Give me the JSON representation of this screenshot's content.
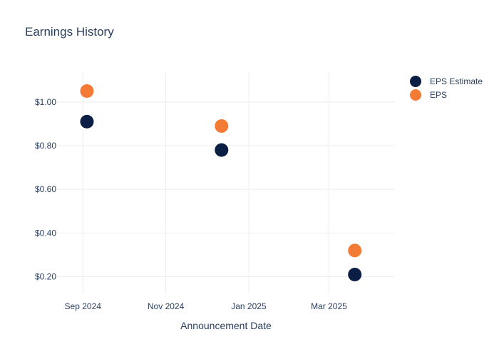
{
  "chart_data": {
    "type": "scatter",
    "title": "Earnings History",
    "xlabel": "Announcement Date",
    "ylabel": "",
    "x_ticks": [
      {
        "date": "2024-09-01",
        "label": "Sep 2024"
      },
      {
        "date": "2024-11-01",
        "label": "Nov 2024"
      },
      {
        "date": "2025-01-01",
        "label": "Jan 2025"
      },
      {
        "date": "2025-03-01",
        "label": "Mar 2025"
      }
    ],
    "xlim": [
      "2024-08-13",
      "2025-04-18"
    ],
    "y_ticks": [
      {
        "value": 0.2,
        "label": "$0.20"
      },
      {
        "value": 0.4,
        "label": "$0.40"
      },
      {
        "value": 0.6,
        "label": "$0.60"
      },
      {
        "value": 0.8,
        "label": "$0.80"
      },
      {
        "value": 1.0,
        "label": "$1.00"
      }
    ],
    "ylim": [
      0.12,
      1.14
    ],
    "grid": true,
    "legend_position": "top-right",
    "series": [
      {
        "name": "EPS Estimate",
        "color": "#0b1f44",
        "points": [
          {
            "x": "2024-09-04",
            "y": 0.91
          },
          {
            "x": "2024-12-12",
            "y": 0.78
          },
          {
            "x": "2025-03-20",
            "y": 0.21
          }
        ]
      },
      {
        "name": "EPS",
        "color": "#f47b35",
        "points": [
          {
            "x": "2024-09-04",
            "y": 1.05
          },
          {
            "x": "2024-12-12",
            "y": 0.89
          },
          {
            "x": "2025-03-20",
            "y": 0.32
          }
        ]
      }
    ]
  }
}
